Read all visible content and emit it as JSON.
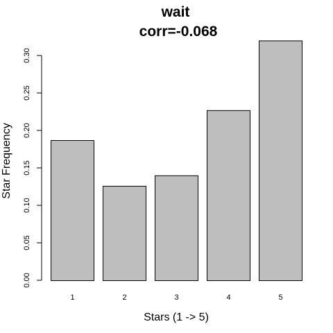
{
  "chart_data": {
    "type": "bar",
    "title": "wait",
    "subtitle": "corr=-0.068",
    "xlabel": "Stars (1 -> 5)",
    "ylabel": "Star Frequency",
    "categories": [
      "1",
      "2",
      "3",
      "4",
      "5"
    ],
    "values": [
      0.187,
      0.126,
      0.14,
      0.227,
      0.32
    ],
    "ylim": [
      0,
      0.32
    ],
    "yticks": [
      0.0,
      0.05,
      0.1,
      0.15,
      0.2,
      0.25,
      0.3
    ],
    "ytick_labels": [
      "0.00",
      "0.05",
      "0.10",
      "0.15",
      "0.20",
      "0.25",
      "0.30"
    ],
    "bar_color": "#bebebe",
    "grid": false,
    "legend": "none"
  }
}
